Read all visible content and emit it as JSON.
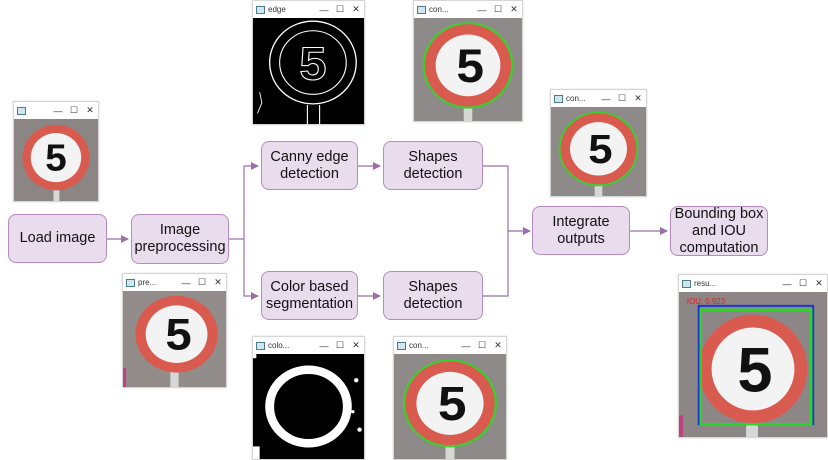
{
  "nodes": {
    "load_image": "Load image",
    "image_preprocessing": "Image\npreprocessing",
    "canny_edge_detection": "Canny edge\ndetection",
    "color_based_segmentation": "Color based\nsegmentation",
    "shapes_detection_top": "Shapes\ndetection",
    "shapes_detection_bottom": "Shapes\ndetection",
    "integrate_outputs": "Integrate\noutputs",
    "bbox_iou": "Bounding box\nand IOU\ncomputation"
  },
  "windows": {
    "input": {
      "title": ""
    },
    "edge": {
      "title": "edge"
    },
    "contour_top": {
      "title": "con..."
    },
    "contour_integrated": {
      "title": "con..."
    },
    "preprocessed": {
      "title": "pre..."
    },
    "color": {
      "title": "colo..."
    },
    "contour_bottom": {
      "title": "con..."
    },
    "result": {
      "title": "resu...",
      "iou_label": "IOU: 0.923"
    }
  },
  "sign": {
    "digit": "5"
  },
  "colors": {
    "node_fill": "#e8dced",
    "node_border": "#b58bc0",
    "arrow": "#9b6fa8",
    "sign_ring": "#d9534f",
    "sign_face": "#f3f3f3",
    "contour": "#3ecf2e",
    "bbox_pred": "#2bd62b",
    "bbox_gt": "#1f2fd6",
    "iou_text": "#e02020"
  },
  "icons": {
    "minimize": "—",
    "maximize": "☐",
    "close": "✕"
  }
}
